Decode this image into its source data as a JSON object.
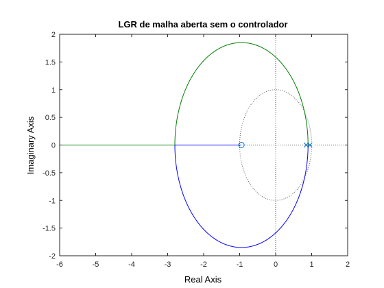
{
  "chart_data": {
    "type": "line",
    "title": "LGR de malha aberta sem o controlador",
    "xlabel": "Real Axis",
    "ylabel": "Imaginary Axis",
    "xlim": [
      -6,
      2
    ],
    "ylim": [
      -2,
      2
    ],
    "x_ticks": [
      -6,
      -5,
      -4,
      -3,
      -2,
      -1,
      0,
      1,
      2
    ],
    "y_ticks": [
      -2,
      -1.5,
      -1,
      -0.5,
      0,
      0.5,
      1,
      1.5,
      2
    ],
    "x_tick_labels": [
      "-6",
      "-5",
      "-4",
      "-3",
      "-2",
      "-1",
      "0",
      "1",
      "2"
    ],
    "y_tick_labels": [
      "-2",
      "-1.5",
      "-1",
      "-0.5",
      "0",
      "0.5",
      "1",
      "1.5",
      "2"
    ],
    "grid": false,
    "colors": {
      "upper_branch": "#007f00",
      "lower_branch": "#0000ff",
      "markers": "#0070c0",
      "unit_circle": "#555555",
      "axes": "#262626"
    },
    "root_locus": {
      "circle_center": [
        -0.95,
        0
      ],
      "circle_radius": 1.85,
      "breakaway_point": [
        -2.8,
        0
      ],
      "branch_start_point": [
        0.9,
        0
      ],
      "real_axis_locus": {
        "from": -6,
        "to": -0.95
      }
    },
    "zeros": [
      [
        -0.95,
        0
      ]
    ],
    "poles": [
      [
        0.85,
        0
      ],
      [
        0.95,
        0
      ]
    ],
    "unit_circle": {
      "center": [
        0,
        0
      ],
      "radius": 1
    }
  }
}
